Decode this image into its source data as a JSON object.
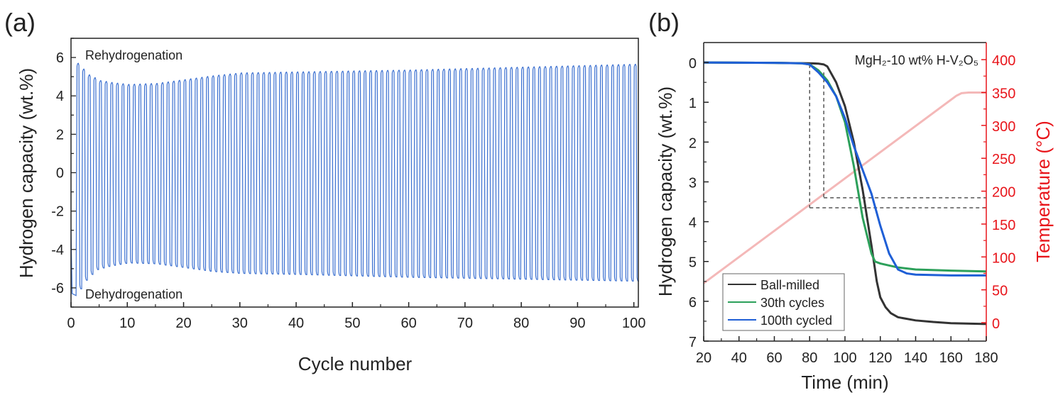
{
  "chart_data": [
    {
      "panel_label": "(a)",
      "type": "line",
      "xlabel": "Cycle number",
      "ylabel": "Hydrogen capacity (wt.%)",
      "xlim": [
        0,
        100.8
      ],
      "ylim": [
        -7,
        7
      ],
      "xticks": [
        0,
        10,
        20,
        30,
        40,
        50,
        60,
        70,
        80,
        90,
        100
      ],
      "yticks": [
        -6,
        -4,
        -2,
        0,
        2,
        4,
        6
      ],
      "grid": false,
      "line_color": "#3a6fd0",
      "annotations": {
        "top": "Rehydrogenation",
        "bottom": "Dehydrogenation"
      },
      "cycles": 100,
      "envelope": {
        "columns": [
          "cycle",
          "max_wt_pct",
          "min_wt_pct"
        ],
        "rows": [
          [
            1,
            5.7,
            -6.4
          ],
          [
            2,
            5.4,
            -5.7
          ],
          [
            3,
            5.1,
            -5.5
          ],
          [
            4,
            4.95,
            -5.1
          ],
          [
            5,
            4.8,
            -5.0
          ],
          [
            7,
            4.7,
            -4.85
          ],
          [
            10,
            4.6,
            -4.7
          ],
          [
            15,
            4.65,
            -4.75
          ],
          [
            20,
            4.85,
            -4.95
          ],
          [
            25,
            5.05,
            -5.15
          ],
          [
            30,
            5.2,
            -5.25
          ],
          [
            40,
            5.25,
            -5.3
          ],
          [
            60,
            5.35,
            -5.45
          ],
          [
            80,
            5.5,
            -5.55
          ],
          [
            100,
            5.65,
            -5.65
          ]
        ]
      }
    },
    {
      "panel_label": "(b)",
      "type": "line",
      "xlabel": "Time (min)",
      "ylabel": "Hydrogen capacity (wt.%)",
      "y2label": "Temperature (°C)",
      "annotation": "MgH₂-10 wt% H-V₂O₅",
      "xlim": [
        20,
        180
      ],
      "ylim": [
        -0.5,
        7
      ],
      "y_inverted": true,
      "y2lim": [
        -28,
        426
      ],
      "xticks": [
        20,
        40,
        60,
        80,
        100,
        120,
        140,
        160,
        180
      ],
      "yticks": [
        0,
        1,
        2,
        3,
        4,
        5,
        6,
        7
      ],
      "y2ticks": [
        0,
        50,
        100,
        150,
        200,
        250,
        300,
        350,
        400
      ],
      "grid": false,
      "legend_position": "bottom-left",
      "axis2_color": "#e8151b",
      "series": [
        {
          "name": "Ball-milled",
          "color": "#333333",
          "x": [
            20,
            60,
            80,
            85,
            88,
            90,
            95,
            100,
            105,
            110,
            115,
            118,
            120,
            123,
            126,
            130,
            140,
            150,
            160,
            180
          ],
          "y": [
            0,
            0.01,
            0.02,
            0.03,
            0.05,
            0.1,
            0.5,
            1.1,
            2.0,
            3.2,
            4.6,
            5.5,
            5.9,
            6.15,
            6.3,
            6.4,
            6.48,
            6.52,
            6.55,
            6.57
          ]
        },
        {
          "name": "30th cycles",
          "color": "#2ca05a",
          "x": [
            20,
            60,
            75,
            80,
            85,
            90,
            95,
            100,
            105,
            110,
            115,
            117,
            120,
            130,
            140,
            160,
            180
          ],
          "y": [
            0,
            0.01,
            0.02,
            0.05,
            0.2,
            0.45,
            0.85,
            1.5,
            2.6,
            3.9,
            4.8,
            5.0,
            5.05,
            5.15,
            5.2,
            5.23,
            5.25
          ]
        },
        {
          "name": "100th cycled",
          "color": "#1f5fd6",
          "x": [
            20,
            60,
            75,
            80,
            85,
            90,
            95,
            100,
            105,
            110,
            115,
            120,
            125,
            130,
            135,
            140,
            160,
            180
          ],
          "y": [
            0,
            0.01,
            0.02,
            0.05,
            0.25,
            0.5,
            0.85,
            1.4,
            2.1,
            2.7,
            3.3,
            4.1,
            4.8,
            5.2,
            5.3,
            5.33,
            5.35,
            5.35
          ]
        },
        {
          "name": "Temperature",
          "axis": "right",
          "color": "#f4b8b8",
          "x": [
            20,
            163,
            166,
            170,
            180
          ],
          "y": [
            60,
            345,
            349,
            350,
            350
          ]
        }
      ],
      "reference_lines": [
        {
          "type": "vertical",
          "x": 80,
          "y_from": 0.05,
          "y_to": 3.65
        },
        {
          "type": "horizontal",
          "y": 3.65,
          "x_from": 80,
          "x_to": 180
        },
        {
          "type": "vertical",
          "x": 88,
          "y_from": 0.25,
          "y_to": 3.4
        },
        {
          "type": "horizontal",
          "y": 3.4,
          "x_from": 88,
          "x_to": 180
        }
      ]
    }
  ]
}
